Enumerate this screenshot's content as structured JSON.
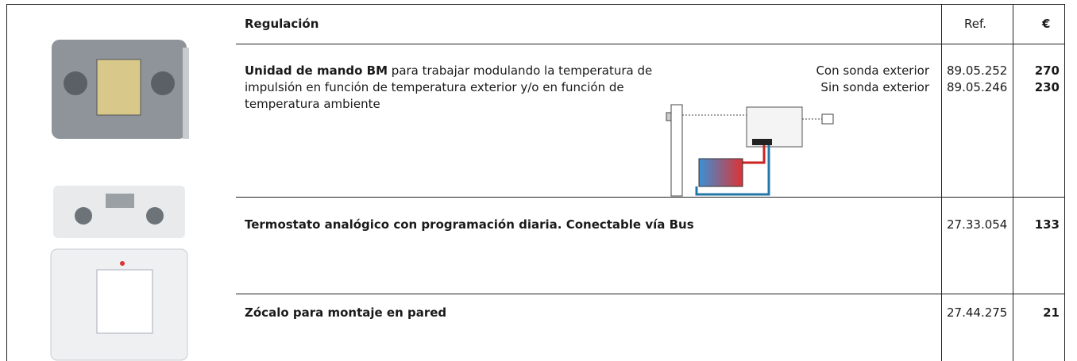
{
  "header": {
    "title": "Regulación",
    "ref": "Ref.",
    "price": "€"
  },
  "rows": [
    {
      "title": "Unidad de mando BM",
      "description": "para trabajar modulando la temperatura de impulsión en función de temperatura exterior y/o en función de temperatura ambiente",
      "options": [
        "Con sonda exterior",
        "Sin sonda exterior"
      ],
      "refs": [
        "89.05.252",
        "89.05.246"
      ],
      "prices": [
        270,
        230
      ]
    },
    {
      "title": "Termostato analógico con programación diaria. Conectable vía Bus",
      "refs": [
        "27.33.054"
      ],
      "prices": [
        133
      ]
    },
    {
      "title": "Zócalo para montaje en pared",
      "refs": [
        "27.44.275"
      ],
      "prices": [
        21
      ]
    }
  ]
}
